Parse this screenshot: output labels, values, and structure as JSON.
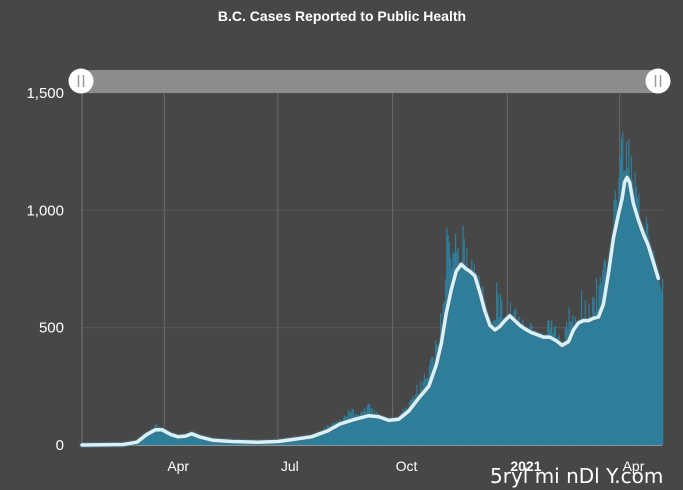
{
  "chart_data": {
    "type": "bar",
    "title": "B.C. Cases Reported to Public Health",
    "ylim": [
      0,
      1500
    ],
    "yticks": [
      {
        "label": "0",
        "value": 0
      },
      {
        "label": "500",
        "value": 500
      },
      {
        "label": "1,000",
        "value": 1000
      },
      {
        "label": "1,500",
        "value": 1500
      }
    ],
    "xticks": [
      {
        "label": "Apr",
        "date": "2020-04-01"
      },
      {
        "label": "Jul",
        "date": "2020-07-01"
      },
      {
        "label": "Oct",
        "date": "2020-10-01"
      },
      {
        "label": "2021",
        "date": "2021-01-01",
        "bold": true
      },
      {
        "label": "Apr",
        "date": "2021-04-01"
      }
    ],
    "x_range": [
      "2020-01-26",
      "2021-05-05"
    ],
    "grid": true,
    "series": [
      {
        "type": "bar",
        "color": "#2f7e9b",
        "points": [
          [
            "2020-01-26",
            1
          ],
          [
            "2020-02-15",
            1
          ],
          [
            "2020-03-01",
            2
          ],
          [
            "2020-03-10",
            10
          ],
          [
            "2020-03-18",
            50
          ],
          [
            "2020-03-25",
            80
          ],
          [
            "2020-03-29",
            65
          ],
          [
            "2020-04-05",
            35
          ],
          [
            "2020-04-12",
            25
          ],
          [
            "2020-04-20",
            48
          ],
          [
            "2020-04-24",
            40
          ],
          [
            "2020-05-01",
            22
          ],
          [
            "2020-05-15",
            15
          ],
          [
            "2020-06-01",
            12
          ],
          [
            "2020-06-15",
            12
          ],
          [
            "2020-07-01",
            15
          ],
          [
            "2020-07-15",
            25
          ],
          [
            "2020-08-01",
            45
          ],
          [
            "2020-08-10",
            80
          ],
          [
            "2020-08-20",
            100
          ],
          [
            "2020-08-28",
            150
          ],
          [
            "2020-09-05",
            125
          ],
          [
            "2020-09-12",
            165
          ],
          [
            "2020-09-20",
            120
          ],
          [
            "2020-09-28",
            100
          ],
          [
            "2020-10-05",
            120
          ],
          [
            "2020-10-12",
            160
          ],
          [
            "2020-10-20",
            230
          ],
          [
            "2020-10-28",
            290
          ],
          [
            "2020-11-05",
            420
          ],
          [
            "2020-11-10",
            560
          ],
          [
            "2020-11-14",
            950
          ],
          [
            "2020-11-17",
            820
          ],
          [
            "2020-11-20",
            900
          ],
          [
            "2020-11-23",
            680
          ],
          [
            "2020-11-26",
            880
          ],
          [
            "2020-11-29",
            760
          ],
          [
            "2020-12-03",
            720
          ],
          [
            "2020-12-07",
            750
          ],
          [
            "2020-12-11",
            630
          ],
          [
            "2020-12-15",
            580
          ],
          [
            "2020-12-19",
            450
          ],
          [
            "2020-12-23",
            620
          ],
          [
            "2020-12-27",
            560
          ],
          [
            "2020-12-31",
            450
          ],
          [
            "2021-01-04",
            600
          ],
          [
            "2021-01-08",
            540
          ],
          [
            "2021-01-12",
            500
          ],
          [
            "2021-01-16",
            460
          ],
          [
            "2021-01-20",
            480
          ],
          [
            "2021-01-25",
            430
          ],
          [
            "2021-01-30",
            440
          ],
          [
            "2021-02-04",
            500
          ],
          [
            "2021-02-09",
            480
          ],
          [
            "2021-02-13",
            400
          ],
          [
            "2021-02-17",
            510
          ],
          [
            "2021-02-21",
            540
          ],
          [
            "2021-02-25",
            520
          ],
          [
            "2021-03-01",
            600
          ],
          [
            "2021-03-05",
            580
          ],
          [
            "2021-03-09",
            560
          ],
          [
            "2021-03-13",
            650
          ],
          [
            "2021-03-17",
            660
          ],
          [
            "2021-03-21",
            750
          ],
          [
            "2021-03-25",
            850
          ],
          [
            "2021-03-29",
            1020
          ],
          [
            "2021-04-01",
            1110
          ],
          [
            "2021-04-03",
            1250
          ],
          [
            "2021-04-06",
            1310
          ],
          [
            "2021-04-09",
            1180
          ],
          [
            "2021-04-12",
            1080
          ],
          [
            "2021-04-15",
            1020
          ],
          [
            "2021-04-18",
            950
          ],
          [
            "2021-04-21",
            900
          ],
          [
            "2021-04-24",
            860
          ],
          [
            "2021-04-27",
            800
          ],
          [
            "2021-04-30",
            690
          ],
          [
            "2021-05-03",
            620
          ],
          [
            "2021-05-05",
            650
          ]
        ]
      },
      {
        "type": "line",
        "color": "#d9f2fa",
        "points": [
          [
            "2020-01-26",
            0
          ],
          [
            "2020-02-28",
            2
          ],
          [
            "2020-03-10",
            12
          ],
          [
            "2020-03-18",
            45
          ],
          [
            "2020-03-25",
            65
          ],
          [
            "2020-03-30",
            65
          ],
          [
            "2020-04-06",
            45
          ],
          [
            "2020-04-12",
            35
          ],
          [
            "2020-04-18",
            38
          ],
          [
            "2020-04-23",
            48
          ],
          [
            "2020-04-29",
            35
          ],
          [
            "2020-05-10",
            20
          ],
          [
            "2020-05-25",
            15
          ],
          [
            "2020-06-15",
            12
          ],
          [
            "2020-07-01",
            15
          ],
          [
            "2020-07-15",
            25
          ],
          [
            "2020-07-28",
            35
          ],
          [
            "2020-08-10",
            60
          ],
          [
            "2020-08-20",
            90
          ],
          [
            "2020-09-01",
            110
          ],
          [
            "2020-09-12",
            125
          ],
          [
            "2020-09-20",
            120
          ],
          [
            "2020-09-28",
            105
          ],
          [
            "2020-10-06",
            110
          ],
          [
            "2020-10-14",
            145
          ],
          [
            "2020-10-22",
            200
          ],
          [
            "2020-10-30",
            250
          ],
          [
            "2020-11-05",
            340
          ],
          [
            "2020-11-09",
            430
          ],
          [
            "2020-11-13",
            560
          ],
          [
            "2020-11-17",
            660
          ],
          [
            "2020-11-21",
            740
          ],
          [
            "2020-11-25",
            770
          ],
          [
            "2020-11-29",
            750
          ],
          [
            "2020-12-02",
            740
          ],
          [
            "2020-12-06",
            720
          ],
          [
            "2020-12-10",
            650
          ],
          [
            "2020-12-14",
            570
          ],
          [
            "2020-12-18",
            510
          ],
          [
            "2020-12-22",
            490
          ],
          [
            "2020-12-26",
            505
          ],
          [
            "2020-12-30",
            530
          ],
          [
            "2021-01-03",
            550
          ],
          [
            "2021-01-07",
            530
          ],
          [
            "2021-01-11",
            510
          ],
          [
            "2021-01-15",
            495
          ],
          [
            "2021-01-20",
            480
          ],
          [
            "2021-01-25",
            470
          ],
          [
            "2021-01-30",
            460
          ],
          [
            "2021-02-04",
            460
          ],
          [
            "2021-02-09",
            445
          ],
          [
            "2021-02-14",
            425
          ],
          [
            "2021-02-19",
            440
          ],
          [
            "2021-02-23",
            490
          ],
          [
            "2021-02-27",
            520
          ],
          [
            "2021-03-03",
            530
          ],
          [
            "2021-03-07",
            530
          ],
          [
            "2021-03-11",
            540
          ],
          [
            "2021-03-15",
            545
          ],
          [
            "2021-03-19",
            600
          ],
          [
            "2021-03-23",
            730
          ],
          [
            "2021-03-27",
            880
          ],
          [
            "2021-03-31",
            980
          ],
          [
            "2021-04-03",
            1050
          ],
          [
            "2021-04-05",
            1120
          ],
          [
            "2021-04-07",
            1140
          ],
          [
            "2021-04-09",
            1120
          ],
          [
            "2021-04-12",
            1030
          ],
          [
            "2021-04-16",
            960
          ],
          [
            "2021-04-20",
            900
          ],
          [
            "2021-04-24",
            850
          ],
          [
            "2021-04-28",
            780
          ],
          [
            "2021-05-02",
            710
          ]
        ]
      }
    ]
  },
  "slider": {
    "start_handle": "handle-icon",
    "end_handle": "handle-icon"
  },
  "watermark": "5ryl mi nDl Y.com"
}
